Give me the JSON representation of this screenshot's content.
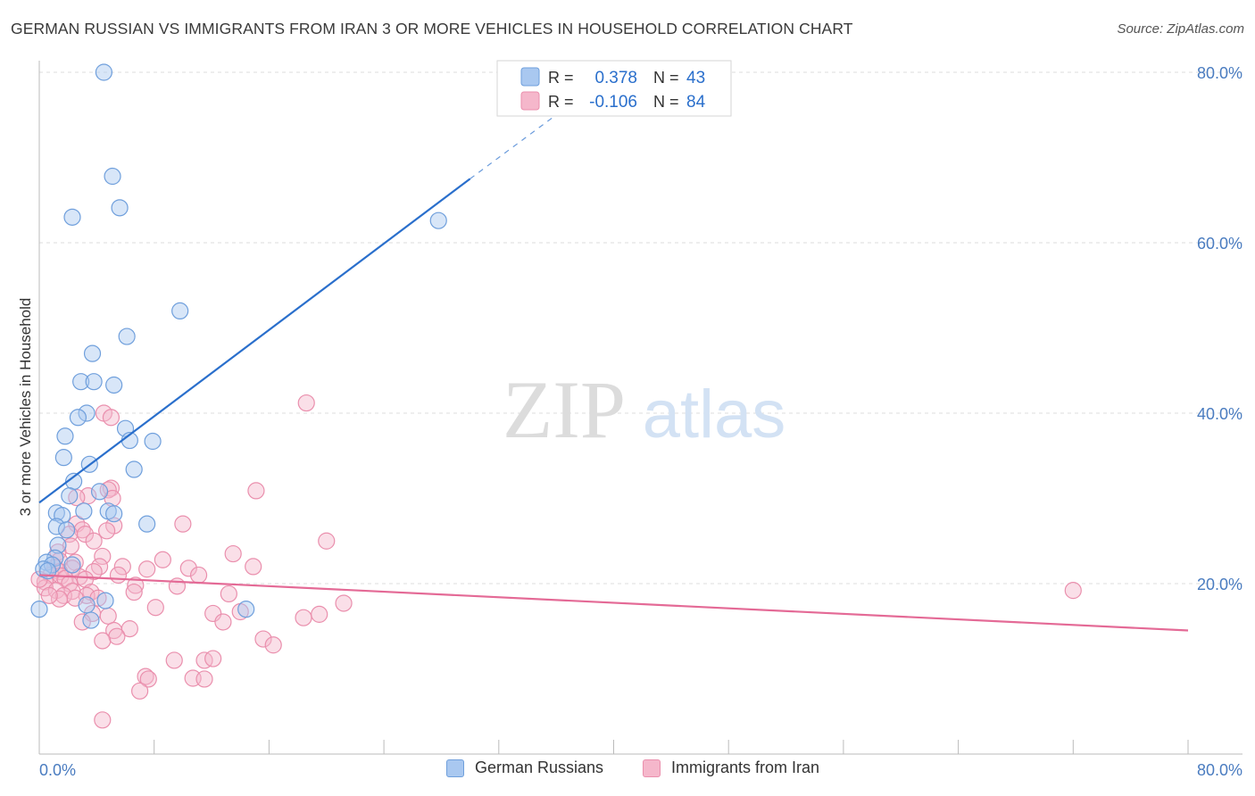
{
  "title": "GERMAN RUSSIAN VS IMMIGRANTS FROM IRAN 3 OR MORE VEHICLES IN HOUSEHOLD CORRELATION CHART",
  "source": "Source: ZipAtlas.com",
  "watermark": {
    "zip": "ZIP",
    "atlas": "atlas"
  },
  "colors": {
    "blue_fill": "#a9c8f0",
    "blue_stroke": "#6f9fdc",
    "blue_line": "#2a6fcc",
    "pink_fill": "#f5b7cb",
    "pink_stroke": "#ea8fad",
    "pink_line": "#e46a96",
    "tick_text": "#4a7cc0",
    "grid": "#dedede"
  },
  "legend": {
    "rows": [
      {
        "r_label": "R =",
        "r_value": "0.378",
        "n_label": "N =",
        "n_value": "43"
      },
      {
        "r_label": "R =",
        "r_value": "-0.106",
        "n_label": "N =",
        "n_value": "84"
      }
    ]
  },
  "chart_data": {
    "type": "scatter",
    "title": "GERMAN RUSSIAN VS IMMIGRANTS FROM IRAN 3 OR MORE VEHICLES IN HOUSEHOLD CORRELATION CHART",
    "xlabel": "",
    "ylabel": "3 or more Vehicles in Household",
    "xlim": [
      0,
      0.8
    ],
    "ylim": [
      0,
      0.8
    ],
    "x_tick_labels": [
      "0.0%",
      "80.0%"
    ],
    "y_ticks": [
      0.2,
      0.4,
      0.6,
      0.8
    ],
    "y_tick_labels": [
      "20.0%",
      "40.0%",
      "60.0%",
      "80.0%"
    ],
    "grid": true,
    "legend_placement": "top-center",
    "series": [
      {
        "name": "German Russians",
        "color": "blue",
        "R": 0.378,
        "N": 43,
        "trend": {
          "x": [
            0.0,
            0.3,
            0.38
          ],
          "y": [
            0.295,
            0.675,
            0.775
          ]
        },
        "points": [
          [
            0.045,
            0.8
          ],
          [
            0.051,
            0.678
          ],
          [
            0.023,
            0.63
          ],
          [
            0.056,
            0.641
          ],
          [
            0.278,
            0.626
          ],
          [
            0.098,
            0.52
          ],
          [
            0.061,
            0.49
          ],
          [
            0.037,
            0.47
          ],
          [
            0.029,
            0.437
          ],
          [
            0.038,
            0.437
          ],
          [
            0.052,
            0.433
          ],
          [
            0.033,
            0.4
          ],
          [
            0.027,
            0.395
          ],
          [
            0.018,
            0.373
          ],
          [
            0.06,
            0.382
          ],
          [
            0.063,
            0.368
          ],
          [
            0.079,
            0.367
          ],
          [
            0.017,
            0.348
          ],
          [
            0.035,
            0.34
          ],
          [
            0.066,
            0.334
          ],
          [
            0.024,
            0.32
          ],
          [
            0.042,
            0.308
          ],
          [
            0.021,
            0.303
          ],
          [
            0.012,
            0.283
          ],
          [
            0.016,
            0.28
          ],
          [
            0.031,
            0.285
          ],
          [
            0.048,
            0.285
          ],
          [
            0.052,
            0.282
          ],
          [
            0.075,
            0.27
          ],
          [
            0.012,
            0.267
          ],
          [
            0.019,
            0.263
          ],
          [
            0.013,
            0.245
          ],
          [
            0.011,
            0.23
          ],
          [
            0.005,
            0.225
          ],
          [
            0.009,
            0.222
          ],
          [
            0.023,
            0.222
          ],
          [
            0.003,
            0.217
          ],
          [
            0.006,
            0.215
          ],
          [
            0.046,
            0.18
          ],
          [
            0.033,
            0.175
          ],
          [
            0.036,
            0.157
          ],
          [
            0.144,
            0.17
          ],
          [
            0.0,
            0.17
          ]
        ]
      },
      {
        "name": "Immigrants from Iran",
        "color": "pink",
        "R": -0.106,
        "N": 84,
        "trend": {
          "x": [
            0.0,
            0.8
          ],
          "y": [
            0.21,
            0.145
          ]
        },
        "points": [
          [
            0.186,
            0.412
          ],
          [
            0.045,
            0.4
          ],
          [
            0.05,
            0.395
          ],
          [
            0.151,
            0.309
          ],
          [
            0.034,
            0.303
          ],
          [
            0.05,
            0.312
          ],
          [
            0.048,
            0.31
          ],
          [
            0.026,
            0.301
          ],
          [
            0.051,
            0.3
          ],
          [
            0.026,
            0.27
          ],
          [
            0.052,
            0.268
          ],
          [
            0.03,
            0.263
          ],
          [
            0.047,
            0.262
          ],
          [
            0.1,
            0.27
          ],
          [
            0.021,
            0.258
          ],
          [
            0.032,
            0.258
          ],
          [
            0.038,
            0.25
          ],
          [
            0.022,
            0.244
          ],
          [
            0.013,
            0.237
          ],
          [
            0.2,
            0.25
          ],
          [
            0.135,
            0.235
          ],
          [
            0.044,
            0.232
          ],
          [
            0.014,
            0.227
          ],
          [
            0.025,
            0.225
          ],
          [
            0.086,
            0.228
          ],
          [
            0.042,
            0.22
          ],
          [
            0.058,
            0.22
          ],
          [
            0.011,
            0.219
          ],
          [
            0.023,
            0.218
          ],
          [
            0.014,
            0.214
          ],
          [
            0.038,
            0.214
          ],
          [
            0.075,
            0.217
          ],
          [
            0.104,
            0.218
          ],
          [
            0.149,
            0.22
          ],
          [
            0.008,
            0.21
          ],
          [
            0.015,
            0.209
          ],
          [
            0.028,
            0.208
          ],
          [
            0.018,
            0.206
          ],
          [
            0.032,
            0.205
          ],
          [
            0.055,
            0.21
          ],
          [
            0.111,
            0.21
          ],
          [
            0.004,
            0.202
          ],
          [
            0.021,
            0.2
          ],
          [
            0.067,
            0.198
          ],
          [
            0.096,
            0.197
          ],
          [
            0.066,
            0.19
          ],
          [
            0.004,
            0.195
          ],
          [
            0.012,
            0.192
          ],
          [
            0.023,
            0.191
          ],
          [
            0.036,
            0.19
          ],
          [
            0.017,
            0.186
          ],
          [
            0.033,
            0.186
          ],
          [
            0.132,
            0.188
          ],
          [
            0.014,
            0.182
          ],
          [
            0.72,
            0.192
          ],
          [
            0.007,
            0.186
          ],
          [
            0.025,
            0.183
          ],
          [
            0.041,
            0.183
          ],
          [
            0.081,
            0.172
          ],
          [
            0.121,
            0.165
          ],
          [
            0.14,
            0.167
          ],
          [
            0.184,
            0.16
          ],
          [
            0.195,
            0.164
          ],
          [
            0.212,
            0.177
          ],
          [
            0.037,
            0.165
          ],
          [
            0.048,
            0.162
          ],
          [
            0.03,
            0.155
          ],
          [
            0.128,
            0.155
          ],
          [
            0.052,
            0.145
          ],
          [
            0.063,
            0.147
          ],
          [
            0.054,
            0.138
          ],
          [
            0.044,
            0.133
          ],
          [
            0.156,
            0.135
          ],
          [
            0.163,
            0.128
          ],
          [
            0.094,
            0.11
          ],
          [
            0.115,
            0.11
          ],
          [
            0.121,
            0.112
          ],
          [
            0.074,
            0.091
          ],
          [
            0.076,
            0.088
          ],
          [
            0.107,
            0.089
          ],
          [
            0.115,
            0.088
          ],
          [
            0.07,
            0.074
          ],
          [
            0.044,
            0.04
          ],
          [
            0.0,
            0.205
          ]
        ]
      }
    ]
  },
  "bottom_legend": [
    {
      "label": "German Russians"
    },
    {
      "label": "Immigrants from Iran"
    }
  ]
}
